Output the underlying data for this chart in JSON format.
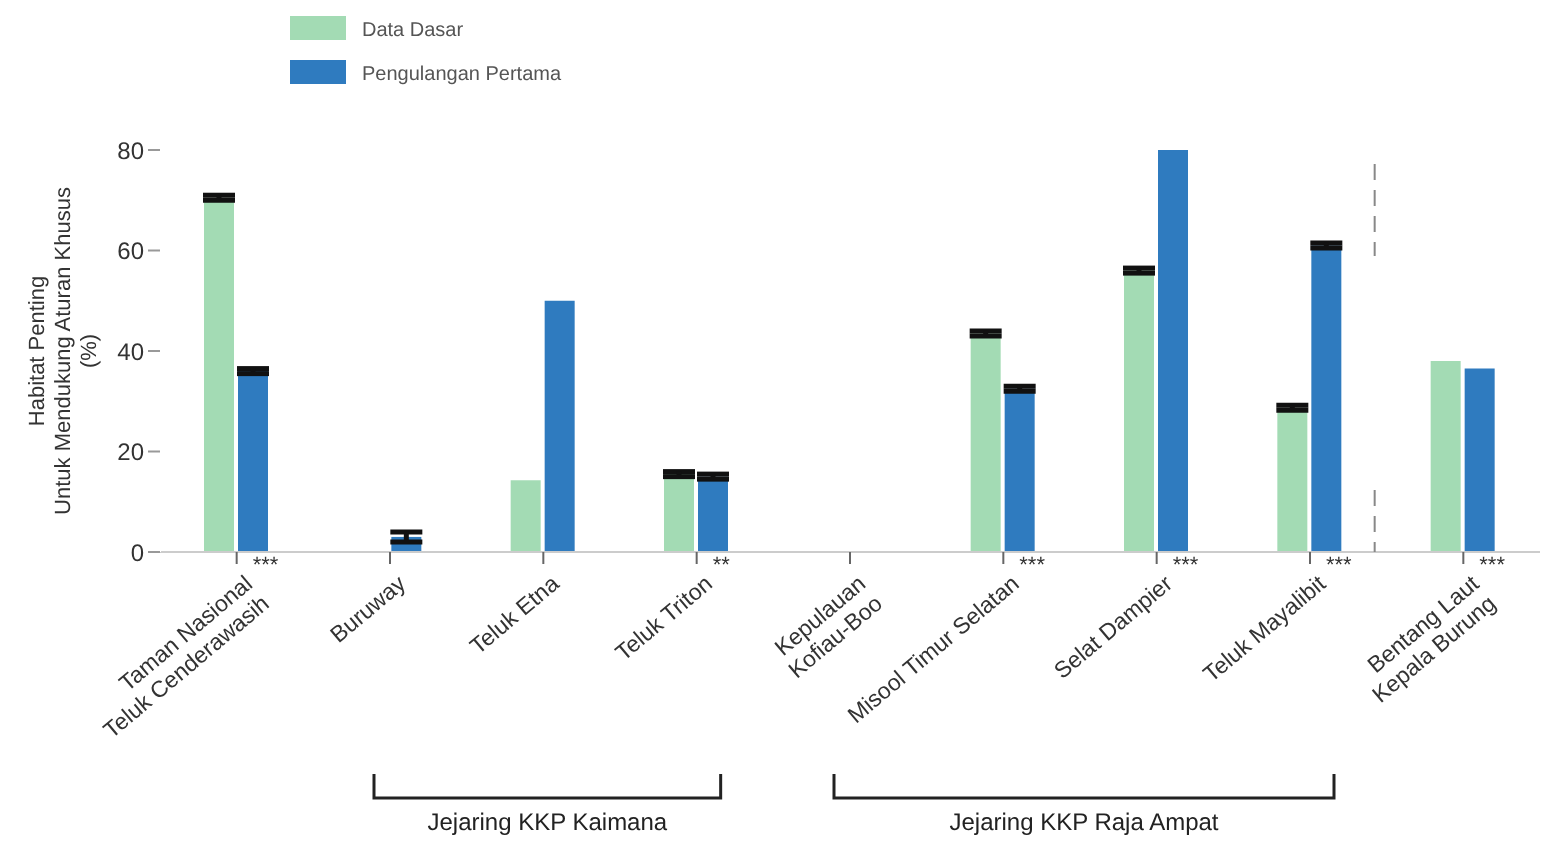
{
  "chart_data": {
    "type": "bar",
    "ylabel": "Habitat Penting\nUntuk Mendukung Aturan Khusus\n(%)",
    "categories": [
      "Taman Nasional\nTeluk Cenderawasih",
      "Buruway",
      "Teluk Etna",
      "Teluk Triton",
      "Kepulauan\nKofiau-Boo",
      "Misool Timur Selatan",
      "Selat Dampier",
      "Teluk Mayalibit",
      "Bentang Laut\nKepala Burung"
    ],
    "series": [
      {
        "name": "Data Dasar",
        "color": "#a3dbb4",
        "values": [
          70.5,
          null,
          14.3,
          15.5,
          null,
          43.5,
          56,
          28.7,
          38
        ],
        "errors": [
          0.5,
          null,
          null,
          0.5,
          null,
          0.5,
          0.5,
          0.5,
          null
        ]
      },
      {
        "name": "Pengulangan Pertama",
        "color": "#2f7bbf",
        "values": [
          36,
          3,
          50,
          15,
          null,
          32.5,
          80,
          61,
          36.5
        ],
        "errors": [
          0.5,
          1,
          null,
          0.5,
          null,
          0.5,
          null,
          0.5,
          null
        ]
      }
    ],
    "ylim": [
      0,
      80
    ],
    "yticks": [
      0,
      20,
      40,
      60,
      80
    ],
    "grid": false,
    "legend": "top left",
    "annotations": [
      {
        "text": "***",
        "x": "Taman Nasional\nTeluk Cenderawasih",
        "y": 0
      },
      {
        "text": "**",
        "x": "Teluk Triton",
        "y": 0
      },
      {
        "text": "***",
        "x": "Misool Timur Selatan",
        "y": 0
      },
      {
        "text": "***",
        "x": "Selat Dampier",
        "y": 0
      },
      {
        "text": "***",
        "x": "Teluk Mayalibit",
        "y": 0
      },
      {
        "text": "***",
        "x": "Bentang Laut\nKepala Burung",
        "y": 0
      },
      "Jejaring KKP Kaimana",
      "Jejaring KKP Raja Ampat"
    ]
  }
}
